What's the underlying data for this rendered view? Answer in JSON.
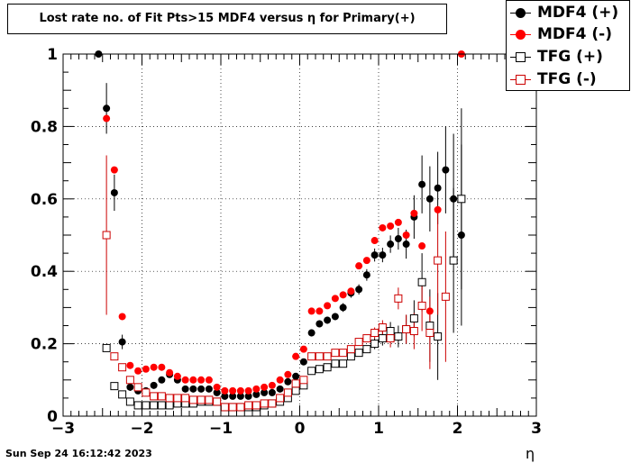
{
  "title": "Lost rate no. of Fit Pts>15 MDF4 versus η for Primary(+)",
  "timestamp": "Sun Sep 24 16:12:42 2023",
  "chart_data": {
    "type": "scatter",
    "xlabel": "η",
    "ylabel": "",
    "xlim": [
      -3,
      3
    ],
    "ylim": [
      0,
      1.0
    ],
    "x_ticks": [
      "−3",
      "−2",
      "−1",
      "0",
      "1",
      "2",
      "3"
    ],
    "y_ticks": [
      "0",
      "0.2",
      "0.4",
      "0.6",
      "0.8",
      "1"
    ],
    "grid": true,
    "legend_position": "top-right",
    "series": [
      {
        "name": "MDF4 (+)",
        "marker": "filled-circle",
        "color": "#000000",
        "points": [
          [
            -2.55,
            1.0,
            0
          ],
          [
            -2.45,
            0.85,
            0.07
          ],
          [
            -2.35,
            0.617,
            0.05
          ],
          [
            -2.25,
            0.205,
            0.02
          ],
          [
            -2.15,
            0.08,
            0.01
          ],
          [
            -2.05,
            0.07,
            0.008
          ],
          [
            -1.95,
            0.07,
            0.008
          ],
          [
            -1.85,
            0.085,
            0.008
          ],
          [
            -1.75,
            0.1,
            0.008
          ],
          [
            -1.65,
            0.115,
            0.008
          ],
          [
            -1.55,
            0.1,
            0.008
          ],
          [
            -1.45,
            0.075,
            0.006
          ],
          [
            -1.35,
            0.075,
            0.006
          ],
          [
            -1.25,
            0.075,
            0.006
          ],
          [
            -1.15,
            0.075,
            0.006
          ],
          [
            -1.05,
            0.065,
            0.006
          ],
          [
            -0.95,
            0.055,
            0.005
          ],
          [
            -0.85,
            0.055,
            0.005
          ],
          [
            -0.75,
            0.055,
            0.005
          ],
          [
            -0.65,
            0.055,
            0.005
          ],
          [
            -0.55,
            0.06,
            0.005
          ],
          [
            -0.45,
            0.065,
            0.005
          ],
          [
            -0.35,
            0.065,
            0.005
          ],
          [
            -0.25,
            0.075,
            0.006
          ],
          [
            -0.15,
            0.095,
            0.006
          ],
          [
            -0.05,
            0.11,
            0.007
          ],
          [
            0.05,
            0.15,
            0.008
          ],
          [
            0.15,
            0.23,
            0.01
          ],
          [
            0.25,
            0.255,
            0.01
          ],
          [
            0.35,
            0.265,
            0.01
          ],
          [
            0.45,
            0.275,
            0.01
          ],
          [
            0.55,
            0.3,
            0.012
          ],
          [
            0.65,
            0.34,
            0.013
          ],
          [
            0.75,
            0.35,
            0.014
          ],
          [
            0.85,
            0.39,
            0.016
          ],
          [
            0.95,
            0.445,
            0.018
          ],
          [
            1.05,
            0.445,
            0.02
          ],
          [
            1.15,
            0.475,
            0.024
          ],
          [
            1.25,
            0.49,
            0.03
          ],
          [
            1.35,
            0.475,
            0.04
          ],
          [
            1.45,
            0.55,
            0.06
          ],
          [
            1.55,
            0.64,
            0.08
          ],
          [
            1.65,
            0.6,
            0.09
          ],
          [
            1.75,
            0.63,
            0.1
          ],
          [
            1.85,
            0.68,
            0.12
          ],
          [
            1.95,
            0.6,
            0.18
          ],
          [
            2.05,
            0.5,
            0.25
          ]
        ]
      },
      {
        "name": "MDF4 (-)",
        "marker": "filled-circle",
        "color": "#ff0000",
        "points": [
          [
            -2.45,
            0.822,
            0
          ],
          [
            -2.35,
            0.68,
            0
          ],
          [
            -2.25,
            0.275,
            0
          ],
          [
            -2.15,
            0.14,
            0
          ],
          [
            -2.05,
            0.125,
            0
          ],
          [
            -1.95,
            0.13,
            0
          ],
          [
            -1.85,
            0.135,
            0
          ],
          [
            -1.75,
            0.135,
            0
          ],
          [
            -1.65,
            0.12,
            0
          ],
          [
            -1.55,
            0.11,
            0
          ],
          [
            -1.45,
            0.1,
            0
          ],
          [
            -1.35,
            0.1,
            0
          ],
          [
            -1.25,
            0.1,
            0
          ],
          [
            -1.15,
            0.1,
            0
          ],
          [
            -1.05,
            0.08,
            0
          ],
          [
            -0.95,
            0.07,
            0
          ],
          [
            -0.85,
            0.07,
            0
          ],
          [
            -0.75,
            0.07,
            0
          ],
          [
            -0.65,
            0.07,
            0
          ],
          [
            -0.55,
            0.075,
            0
          ],
          [
            -0.45,
            0.08,
            0
          ],
          [
            -0.35,
            0.085,
            0
          ],
          [
            -0.25,
            0.1,
            0
          ],
          [
            -0.15,
            0.115,
            0
          ],
          [
            -0.05,
            0.165,
            0
          ],
          [
            0.05,
            0.185,
            0
          ],
          [
            0.15,
            0.29,
            0
          ],
          [
            0.25,
            0.29,
            0
          ],
          [
            0.35,
            0.305,
            0
          ],
          [
            0.45,
            0.325,
            0
          ],
          [
            0.55,
            0.335,
            0
          ],
          [
            0.65,
            0.345,
            0
          ],
          [
            0.75,
            0.415,
            0
          ],
          [
            0.85,
            0.43,
            0
          ],
          [
            0.95,
            0.485,
            0
          ],
          [
            1.05,
            0.52,
            0
          ],
          [
            1.15,
            0.525,
            0
          ],
          [
            1.25,
            0.535,
            0
          ],
          [
            1.35,
            0.5,
            0
          ],
          [
            1.45,
            0.56,
            0
          ],
          [
            1.55,
            0.47,
            0
          ],
          [
            1.65,
            0.29,
            0
          ],
          [
            1.75,
            0.57,
            0
          ],
          [
            1.85,
            0.33,
            0
          ],
          [
            2.05,
            1.0,
            0
          ]
        ]
      },
      {
        "name": "TFG (+)",
        "marker": "open-square",
        "color": "#000000",
        "points": [
          [
            -2.45,
            0.188,
            0.01
          ],
          [
            -2.35,
            0.083,
            0
          ],
          [
            -2.25,
            0.06,
            0
          ],
          [
            -2.15,
            0.04,
            0
          ],
          [
            -2.05,
            0.03,
            0
          ],
          [
            -1.95,
            0.03,
            0
          ],
          [
            -1.85,
            0.03,
            0
          ],
          [
            -1.75,
            0.03,
            0
          ],
          [
            -1.65,
            0.03,
            0
          ],
          [
            -1.55,
            0.035,
            0
          ],
          [
            -1.45,
            0.035,
            0
          ],
          [
            -1.35,
            0.035,
            0
          ],
          [
            -1.25,
            0.04,
            0
          ],
          [
            -1.15,
            0.04,
            0
          ],
          [
            -1.05,
            0.04,
            0
          ],
          [
            -0.95,
            0.025,
            0
          ],
          [
            -0.85,
            0.025,
            0
          ],
          [
            -0.75,
            0.025,
            0
          ],
          [
            -0.65,
            0.025,
            0
          ],
          [
            -0.55,
            0.025,
            0
          ],
          [
            -0.45,
            0.03,
            0
          ],
          [
            -0.35,
            0.035,
            0
          ],
          [
            -0.25,
            0.04,
            0
          ],
          [
            -0.15,
            0.05,
            0
          ],
          [
            -0.05,
            0.07,
            0
          ],
          [
            0.05,
            0.085,
            0
          ],
          [
            0.15,
            0.125,
            0
          ],
          [
            0.25,
            0.13,
            0
          ],
          [
            0.35,
            0.135,
            0
          ],
          [
            0.45,
            0.145,
            0
          ],
          [
            0.55,
            0.145,
            0
          ],
          [
            0.65,
            0.165,
            0
          ],
          [
            0.75,
            0.175,
            0
          ],
          [
            0.85,
            0.185,
            0
          ],
          [
            0.95,
            0.2,
            0.015
          ],
          [
            1.05,
            0.215,
            0.02
          ],
          [
            1.15,
            0.235,
            0.025
          ],
          [
            1.25,
            0.22,
            0.03
          ],
          [
            1.35,
            0.24,
            0.04
          ],
          [
            1.45,
            0.27,
            0.05
          ],
          [
            1.55,
            0.37,
            0.08
          ],
          [
            1.65,
            0.25,
            0.1
          ],
          [
            1.75,
            0.22,
            0.12
          ],
          [
            1.95,
            0.43,
            0.2
          ],
          [
            2.05,
            0.6,
            0.25
          ]
        ]
      },
      {
        "name": "TFG (-)",
        "marker": "open-square",
        "color": "#cc0000",
        "points": [
          [
            -2.45,
            0.5,
            0.22
          ],
          [
            -2.35,
            0.165,
            0
          ],
          [
            -2.25,
            0.135,
            0
          ],
          [
            -2.15,
            0.1,
            0
          ],
          [
            -2.05,
            0.08,
            0
          ],
          [
            -1.95,
            0.065,
            0
          ],
          [
            -1.85,
            0.055,
            0
          ],
          [
            -1.75,
            0.055,
            0
          ],
          [
            -1.65,
            0.05,
            0
          ],
          [
            -1.55,
            0.05,
            0
          ],
          [
            -1.45,
            0.05,
            0
          ],
          [
            -1.35,
            0.045,
            0
          ],
          [
            -1.25,
            0.045,
            0
          ],
          [
            -1.15,
            0.045,
            0
          ],
          [
            -1.05,
            0.04,
            0
          ],
          [
            -0.95,
            0.025,
            0
          ],
          [
            -0.85,
            0.025,
            0
          ],
          [
            -0.75,
            0.025,
            0
          ],
          [
            -0.65,
            0.03,
            0
          ],
          [
            -0.55,
            0.03,
            0
          ],
          [
            -0.45,
            0.035,
            0
          ],
          [
            -0.35,
            0.035,
            0
          ],
          [
            -0.25,
            0.05,
            0
          ],
          [
            -0.15,
            0.065,
            0
          ],
          [
            -0.05,
            0.09,
            0
          ],
          [
            0.05,
            0.1,
            0
          ],
          [
            0.15,
            0.165,
            0
          ],
          [
            0.25,
            0.165,
            0
          ],
          [
            0.35,
            0.165,
            0
          ],
          [
            0.45,
            0.175,
            0
          ],
          [
            0.55,
            0.175,
            0
          ],
          [
            0.65,
            0.185,
            0
          ],
          [
            0.75,
            0.205,
            0
          ],
          [
            0.85,
            0.215,
            0
          ],
          [
            0.95,
            0.23,
            0.015
          ],
          [
            1.05,
            0.245,
            0.02
          ],
          [
            1.15,
            0.215,
            0.025
          ],
          [
            1.25,
            0.325,
            0.03
          ],
          [
            1.35,
            0.24,
            0.04
          ],
          [
            1.45,
            0.235,
            0.05
          ],
          [
            1.55,
            0.305,
            0.07
          ],
          [
            1.65,
            0.23,
            0.1
          ],
          [
            1.75,
            0.43,
            0.15
          ],
          [
            1.85,
            0.33,
            0.18
          ]
        ]
      }
    ]
  }
}
